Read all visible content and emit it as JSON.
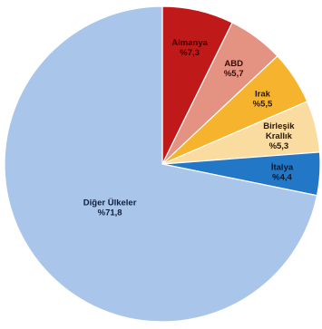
{
  "chart_data": {
    "type": "pie",
    "start": "top",
    "direction": "clockwise",
    "slices": [
      {
        "name": "Almanya",
        "value_label": "%7,3",
        "value": 7.3,
        "color": "#c01919",
        "text_color": "#3a0000"
      },
      {
        "name": "ABD",
        "value_label": "%5,7",
        "value": 5.7,
        "color": "#e49282",
        "text_color": "#3a0a00"
      },
      {
        "name": "Irak",
        "value_label": "%5,5",
        "value": 5.5,
        "color": "#f6b42e",
        "text_color": "#2a1800"
      },
      {
        "name": "Birleşik Krallık",
        "value_label": "%5,3",
        "value": 5.3,
        "color": "#fbdca0",
        "text_color": "#2a1800",
        "name_lines": [
          "Birleşik",
          "Krallık"
        ]
      },
      {
        "name": "İtalya",
        "value_label": "%4,4",
        "value": 4.4,
        "color": "#2277c6",
        "text_color": "#001a33"
      },
      {
        "name": "Diğer Ülkeler",
        "value_label": "%71,8",
        "value": 71.8,
        "color": "#a9c5e9",
        "text_color": "#0f1f3d"
      }
    ]
  }
}
